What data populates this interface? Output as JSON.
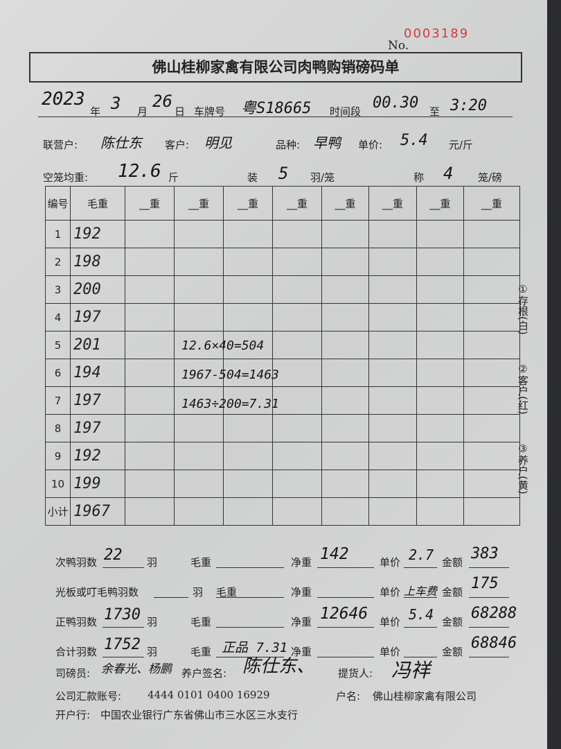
{
  "serial": "0003189",
  "no_label": "No.",
  "title": "佛山桂柳家禽有限公司肉鸭购销磅码单",
  "date": {
    "year": "2023",
    "year_label": "年",
    "month": "3",
    "month_label": "月",
    "day": "26",
    "day_label": "日"
  },
  "plate_label": "车牌号",
  "plate": "粤S18665",
  "time_label": "时间段",
  "time_from": "00.30",
  "to_label": "至",
  "time_to": "3:20",
  "partner_label": "联营户:",
  "partner": "陈仕东",
  "customer_label": "客户:",
  "customer": "明见",
  "variety_label": "品种:",
  "variety": "早鸭",
  "price_label": "单价:",
  "price": "5.4",
  "price_unit": "元/斤",
  "cage_weight_label": "空笼均重:",
  "cage_weight": "12.6",
  "cage_unit": "斤",
  "load_label": "装",
  "load": "5",
  "load_unit": "羽/笼",
  "weigh_label": "称",
  "weigh": "4",
  "weigh_unit": "笼/磅",
  "table": {
    "headers": [
      "编号",
      "毛重",
      "__重",
      "__重",
      "__重",
      "__重",
      "__重",
      "__重",
      "__重",
      "__重"
    ],
    "rows": [
      [
        "1",
        "192"
      ],
      [
        "2",
        "198"
      ],
      [
        "3",
        "200"
      ],
      [
        "4",
        "197"
      ],
      [
        "5",
        "201"
      ],
      [
        "6",
        "194"
      ],
      [
        "7",
        "197"
      ],
      [
        "8",
        "197"
      ],
      [
        "9",
        "192"
      ],
      [
        "10",
        "199"
      ],
      [
        "小计",
        "1967"
      ]
    ],
    "calcs": [
      "12.6×40=504",
      "1967-504=1463",
      "1463÷200=7.31"
    ]
  },
  "side_note": [
    "①存根(白)",
    "②客户(红)",
    "③养户(黄)"
  ],
  "summary": [
    {
      "a": "次鸭羽数",
      "count": "22",
      "u": "羽",
      "gross_label": "毛重",
      "gross": "",
      "net_label": "净重",
      "net": "142",
      "price_label": "单价",
      "price": "2.7",
      "amount_label": "金额",
      "amount": "383"
    },
    {
      "a": "光板或叮毛鸭羽数",
      "count": "",
      "u": "羽",
      "gross_label": "毛重",
      "gross": "",
      "net_label": "净重",
      "net": "",
      "price_label": "单价",
      "price": "上车费",
      "amount_label": "金额",
      "amount": "175"
    },
    {
      "a": "正鸭羽数",
      "count": "1730",
      "u": "羽",
      "gross_label": "毛重",
      "gross": "",
      "net_label": "净重",
      "net": "12646",
      "price_label": "单价",
      "price": "5.4",
      "amount_label": "金额",
      "amount": "68288"
    },
    {
      "a": "合计羽数",
      "count": "1752",
      "u": "羽",
      "gross_label": "毛重",
      "gross": "正品 7.31",
      "net_label": "净重",
      "net": "",
      "price_label": "单价",
      "price": "",
      "amount_label": "金额",
      "amount": "68846"
    }
  ],
  "footer": {
    "weigher_label": "司磅员:",
    "weigher": "余春光、杨鹏",
    "farmer_label": "养户签名:",
    "farmer": "陈仕东、",
    "receiver_label": "提货人:",
    "receiver": "冯祥",
    "account_label": "公司汇款账号:",
    "account": "4444 0101 0400 16929",
    "name_label": "户名:",
    "name": "佛山桂柳家禽有限公司",
    "bank_label": "开户行:",
    "bank": "中国农业银行广东省佛山市三水区三水支行"
  }
}
